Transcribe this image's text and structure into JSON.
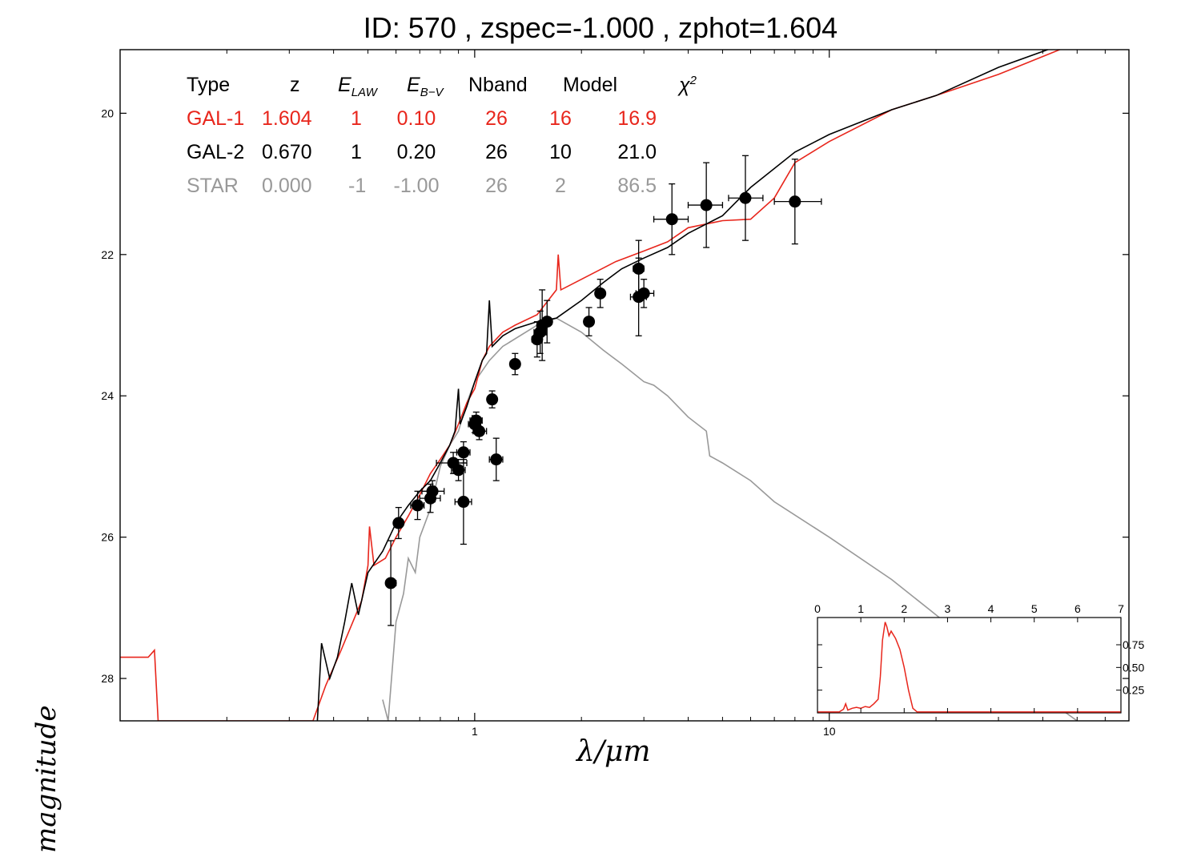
{
  "title": "ID:  570   , zspec=-1.000 , zphot=1.604",
  "chart_data": {
    "type": "line",
    "xlabel": "λ/μm",
    "ylabel": "magnitude",
    "x_scale": "log",
    "xlim": [
      0.1,
      70
    ],
    "ylim": [
      28.6,
      19.1
    ],
    "x_ticks": [
      "1",
      "10"
    ],
    "y_ticks": [
      "20",
      "22",
      "24",
      "26",
      "28"
    ],
    "grid": false,
    "table": {
      "headers": [
        "Type",
        "z",
        "E_LAW",
        "E_B-V",
        "Nband",
        "Model",
        "χ²"
      ],
      "rows": [
        {
          "color": "#e8261c",
          "cells": [
            "GAL-1",
            "1.604",
            "1",
            "0.10",
            "26",
            "16",
            "16.9"
          ]
        },
        {
          "color": "#000000",
          "cells": [
            "GAL-2",
            "0.670",
            "1",
            "0.20",
            "26",
            "10",
            "21.0"
          ]
        },
        {
          "color": "#999999",
          "cells": [
            "STAR",
            "0.000",
            "-1",
            "-1.00",
            "26",
            "2",
            "86.5"
          ]
        }
      ]
    },
    "series": [
      {
        "label": "GAL-1",
        "color": "#e8261c",
        "points": [
          [
            0.1,
            27.7
          ],
          [
            0.12,
            27.7
          ],
          [
            0.125,
            27.6
          ],
          [
            0.128,
            28.6
          ],
          [
            0.35,
            28.6
          ],
          [
            0.38,
            28.1
          ],
          [
            0.42,
            27.6
          ],
          [
            0.48,
            26.9
          ],
          [
            0.5,
            26.4
          ],
          [
            0.505,
            25.85
          ],
          [
            0.52,
            26.4
          ],
          [
            0.56,
            26.3
          ],
          [
            0.6,
            26.0
          ],
          [
            0.65,
            25.7
          ],
          [
            0.7,
            25.4
          ],
          [
            0.75,
            25.1
          ],
          [
            0.8,
            24.9
          ],
          [
            0.85,
            24.7
          ],
          [
            0.9,
            24.4
          ],
          [
            0.95,
            24.1
          ],
          [
            1.0,
            23.9
          ],
          [
            1.05,
            23.5
          ],
          [
            1.1,
            23.3
          ],
          [
            1.2,
            23.1
          ],
          [
            1.3,
            23.0
          ],
          [
            1.5,
            22.85
          ],
          [
            1.7,
            22.5
          ],
          [
            1.72,
            22.0
          ],
          [
            1.75,
            22.5
          ],
          [
            2.0,
            22.35
          ],
          [
            2.5,
            22.1
          ],
          [
            3.0,
            21.95
          ],
          [
            3.5,
            21.82
          ],
          [
            4.0,
            21.62
          ],
          [
            5.0,
            21.52
          ],
          [
            6.0,
            21.5
          ],
          [
            7.0,
            21.2
          ],
          [
            8.0,
            20.7
          ],
          [
            10.0,
            20.4
          ],
          [
            15.0,
            19.95
          ],
          [
            20.0,
            19.75
          ],
          [
            30.0,
            19.45
          ],
          [
            50.0,
            19.0
          ],
          [
            70.0,
            18.55
          ]
        ]
      },
      {
        "label": "GAL-2",
        "color": "#000000",
        "points": [
          [
            0.36,
            28.6
          ],
          [
            0.37,
            27.5
          ],
          [
            0.39,
            28.0
          ],
          [
            0.41,
            27.7
          ],
          [
            0.43,
            27.2
          ],
          [
            0.45,
            26.65
          ],
          [
            0.47,
            27.1
          ],
          [
            0.5,
            26.5
          ],
          [
            0.55,
            26.2
          ],
          [
            0.6,
            25.8
          ],
          [
            0.65,
            25.55
          ],
          [
            0.7,
            25.35
          ],
          [
            0.75,
            25.2
          ],
          [
            0.8,
            24.95
          ],
          [
            0.85,
            24.7
          ],
          [
            0.88,
            24.5
          ],
          [
            0.9,
            23.9
          ],
          [
            0.91,
            24.4
          ],
          [
            0.95,
            24.15
          ],
          [
            1.0,
            23.8
          ],
          [
            1.05,
            23.5
          ],
          [
            1.08,
            23.4
          ],
          [
            1.1,
            22.65
          ],
          [
            1.12,
            23.3
          ],
          [
            1.2,
            23.15
          ],
          [
            1.3,
            23.05
          ],
          [
            1.5,
            22.95
          ],
          [
            1.7,
            22.9
          ],
          [
            2.0,
            22.65
          ],
          [
            2.3,
            22.4
          ],
          [
            2.6,
            22.2
          ],
          [
            3.0,
            22.05
          ],
          [
            3.5,
            21.9
          ],
          [
            4.0,
            21.7
          ],
          [
            5.0,
            21.45
          ],
          [
            6.0,
            21.05
          ],
          [
            8.0,
            20.55
          ],
          [
            10.0,
            20.3
          ],
          [
            15.0,
            19.95
          ],
          [
            20.0,
            19.75
          ],
          [
            30.0,
            19.35
          ],
          [
            50.0,
            18.95
          ],
          [
            70.0,
            18.45
          ]
        ]
      },
      {
        "label": "STAR",
        "color": "#999999",
        "points": [
          [
            0.55,
            28.3
          ],
          [
            0.57,
            28.6
          ],
          [
            0.6,
            27.2
          ],
          [
            0.63,
            26.8
          ],
          [
            0.65,
            26.3
          ],
          [
            0.68,
            26.5
          ],
          [
            0.7,
            26.0
          ],
          [
            0.75,
            25.6
          ],
          [
            0.8,
            25.0
          ],
          [
            0.85,
            24.7
          ],
          [
            0.9,
            24.5
          ],
          [
            0.95,
            24.1
          ],
          [
            1.0,
            23.8
          ],
          [
            1.1,
            23.5
          ],
          [
            1.2,
            23.3
          ],
          [
            1.5,
            23.0
          ],
          [
            1.7,
            22.9
          ],
          [
            2.0,
            23.1
          ],
          [
            2.3,
            23.35
          ],
          [
            2.6,
            23.55
          ],
          [
            3.0,
            23.8
          ],
          [
            3.2,
            23.85
          ],
          [
            3.5,
            24.0
          ],
          [
            4.0,
            24.3
          ],
          [
            4.5,
            24.5
          ],
          [
            4.6,
            24.85
          ],
          [
            5.0,
            24.95
          ],
          [
            6.0,
            25.2
          ],
          [
            7.0,
            25.5
          ],
          [
            10.0,
            26.0
          ],
          [
            15.0,
            26.6
          ],
          [
            20.0,
            27.1
          ],
          [
            30.0,
            27.8
          ],
          [
            50.0,
            28.6
          ]
        ]
      }
    ],
    "photometry": [
      {
        "x": 0.58,
        "y": 26.65,
        "xerr": [
          0.565,
          0.6
        ],
        "yerr": 0.6
      },
      {
        "x": 0.61,
        "y": 25.8,
        "xerr": [
          0.595,
          0.625
        ],
        "yerr": 0.22
      },
      {
        "x": 0.69,
        "y": 25.55,
        "xerr": [
          0.66,
          0.72
        ],
        "yerr": 0.2
      },
      {
        "x": 0.75,
        "y": 25.45,
        "xerr": [
          0.7,
          0.8
        ],
        "yerr": 0.2
      },
      {
        "x": 0.76,
        "y": 25.35,
        "xerr": [
          0.71,
          0.82
        ],
        "yerr": 0.15
      },
      {
        "x": 0.87,
        "y": 24.95,
        "xerr": [
          0.78,
          0.95
        ],
        "yerr": 0.15
      },
      {
        "x": 0.9,
        "y": 25.05,
        "xerr": [
          0.86,
          0.94
        ],
        "yerr": 0.15
      },
      {
        "x": 0.93,
        "y": 24.8,
        "xerr": [
          0.89,
          0.97
        ],
        "yerr": 0.15
      },
      {
        "x": 0.93,
        "y": 25.5,
        "xerr": [
          0.88,
          0.98
        ],
        "yerr": 0.6
      },
      {
        "x": 1.0,
        "y": 24.4,
        "xerr": [
          0.96,
          1.04
        ],
        "yerr": 0.12
      },
      {
        "x": 1.01,
        "y": 24.35,
        "xerr": [
          0.97,
          1.05
        ],
        "yerr": 0.12
      },
      {
        "x": 1.03,
        "y": 24.5,
        "xerr": [
          0.99,
          1.08
        ],
        "yerr": 0.12
      },
      {
        "x": 1.12,
        "y": 24.05,
        "xerr": [
          1.09,
          1.15
        ],
        "yerr": 0.12
      },
      {
        "x": 1.15,
        "y": 24.9,
        "xerr": [
          1.1,
          1.2
        ],
        "yerr": 0.3
      },
      {
        "x": 1.3,
        "y": 23.55,
        "xerr": [
          1.26,
          1.34
        ],
        "yerr": 0.15
      },
      {
        "x": 1.5,
        "y": 23.2,
        "xerr": [
          1.45,
          1.55
        ],
        "yerr": 0.25
      },
      {
        "x": 1.53,
        "y": 23.1,
        "xerr": [
          1.47,
          1.59
        ],
        "yerr": 0.3
      },
      {
        "x": 1.55,
        "y": 23.0,
        "xerr": [
          1.5,
          1.6
        ],
        "yerr": 0.5
      },
      {
        "x": 1.6,
        "y": 22.95,
        "xerr": [
          1.55,
          1.65
        ],
        "yerr": 0.3
      },
      {
        "x": 2.1,
        "y": 22.95,
        "xerr": [
          2.05,
          2.15
        ],
        "yerr": 0.2
      },
      {
        "x": 2.26,
        "y": 22.55,
        "xerr": [
          2.2,
          2.32
        ],
        "yerr": 0.2
      },
      {
        "x": 2.9,
        "y": 22.2,
        "xerr": [
          2.8,
          3.0
        ],
        "yerr": 0.4
      },
      {
        "x": 2.9,
        "y": 22.6,
        "xerr": [
          2.75,
          3.05
        ],
        "yerr": 0.55
      },
      {
        "x": 3.0,
        "y": 22.55,
        "xerr": [
          2.85,
          3.2
        ],
        "yerr": 0.2
      },
      {
        "x": 3.6,
        "y": 21.5,
        "xerr": [
          3.2,
          4.0
        ],
        "yerr": 0.5
      },
      {
        "x": 4.5,
        "y": 21.3,
        "xerr": [
          4.0,
          5.0
        ],
        "yerr": 0.6
      },
      {
        "x": 5.8,
        "y": 21.2,
        "xerr": [
          5.2,
          6.5
        ],
        "yerr": 0.6
      },
      {
        "x": 8.0,
        "y": 21.25,
        "xerr": [
          7.0,
          9.5
        ],
        "yerr": 0.6
      }
    ],
    "inset": {
      "type": "line",
      "color": "#e8261c",
      "xlim": [
        0,
        7
      ],
      "ylim": [
        0,
        1.05
      ],
      "x_ticks": [
        "0",
        "1",
        "2",
        "3",
        "4",
        "5",
        "6",
        "7"
      ],
      "y_ticks": [
        "0.25",
        "0.50",
        "0.75"
      ],
      "points": [
        [
          0,
          0.01
        ],
        [
          0.5,
          0.01
        ],
        [
          0.6,
          0.04
        ],
        [
          0.65,
          0.1
        ],
        [
          0.7,
          0.03
        ],
        [
          0.8,
          0.05
        ],
        [
          0.9,
          0.06
        ],
        [
          1.0,
          0.05
        ],
        [
          1.1,
          0.07
        ],
        [
          1.2,
          0.06
        ],
        [
          1.3,
          0.1
        ],
        [
          1.4,
          0.15
        ],
        [
          1.45,
          0.4
        ],
        [
          1.5,
          0.8
        ],
        [
          1.56,
          1.0
        ],
        [
          1.6,
          0.95
        ],
        [
          1.65,
          0.85
        ],
        [
          1.7,
          0.9
        ],
        [
          1.8,
          0.82
        ],
        [
          1.9,
          0.7
        ],
        [
          2.0,
          0.5
        ],
        [
          2.1,
          0.25
        ],
        [
          2.2,
          0.05
        ],
        [
          2.3,
          0.01
        ],
        [
          3.0,
          0.01
        ],
        [
          7.0,
          0.01
        ]
      ]
    }
  }
}
